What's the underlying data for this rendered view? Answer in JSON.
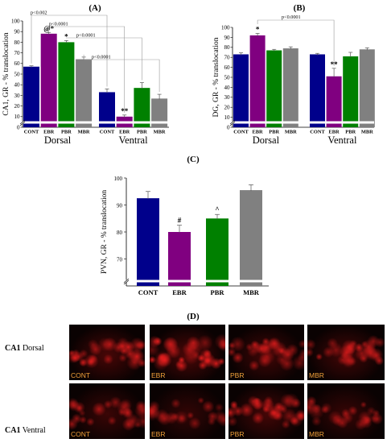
{
  "panels": {
    "A": "(A)",
    "B": "(B)",
    "C": "(C)",
    "D": "(D)"
  },
  "colors": {
    "CONT": "#00008b",
    "EBR": "#800080",
    "PBR": "#008000",
    "MBR": "#808080"
  },
  "chart_data": [
    {
      "id": "A",
      "type": "bar",
      "ylabel": "CA1, GR - % translocation",
      "ylim": [
        0,
        100
      ],
      "yticks": [
        0,
        10,
        20,
        30,
        40,
        50,
        60,
        70,
        80,
        90,
        100
      ],
      "categories": [
        "CONT",
        "EBR",
        "PBR",
        "MBR"
      ],
      "groups": [
        "Dorsal",
        "Ventral"
      ],
      "series": [
        {
          "group": "Dorsal",
          "values": [
            57,
            88,
            80,
            64
          ],
          "errors": [
            0.8,
            1.2,
            1.5,
            2.0
          ],
          "marks": [
            "",
            "@*",
            "*",
            ""
          ]
        },
        {
          "group": "Ventral",
          "values": [
            33,
            10,
            37,
            27
          ],
          "errors": [
            3.0,
            1.5,
            5.0,
            4.0
          ],
          "marks": [
            "",
            "**",
            "",
            ""
          ]
        }
      ],
      "comparisons": [
        "p<0.002",
        "p<0.0001",
        "p<0.0001",
        "p<0.0001"
      ],
      "grid": false
    },
    {
      "id": "B",
      "type": "bar",
      "ylabel": "DG, GR - % translocation",
      "ylim": [
        0,
        100
      ],
      "yticks": [
        0,
        10,
        20,
        30,
        40,
        50,
        60,
        70,
        80,
        90,
        100
      ],
      "categories": [
        "CONT",
        "EBR",
        "PBR",
        "MBR"
      ],
      "groups": [
        "Dorsal",
        "Ventral"
      ],
      "series": [
        {
          "group": "Dorsal",
          "values": [
            73,
            92,
            77,
            79
          ],
          "errors": [
            1.5,
            2.0,
            1.0,
            1.5
          ],
          "marks": [
            "",
            "*",
            "",
            ""
          ]
        },
        {
          "group": "Ventral",
          "values": [
            73,
            51,
            71,
            78
          ],
          "errors": [
            1.0,
            8.0,
            4.0,
            1.5
          ],
          "marks": [
            "",
            "**",
            "",
            ""
          ]
        }
      ],
      "comparisons": [
        "p<0.0001"
      ],
      "grid": false
    },
    {
      "id": "C",
      "type": "bar",
      "ylabel": "PVN, GR - % translocation",
      "ylim": [
        60,
        100
      ],
      "yticks": [
        70,
        80,
        90,
        100
      ],
      "categories": [
        "CONT",
        "EBR",
        "PBR",
        "MBR"
      ],
      "values": [
        92.5,
        80,
        85,
        95.5
      ],
      "errors": [
        2.5,
        2.5,
        1.5,
        2.0
      ],
      "marks": [
        "",
        "#",
        "^",
        ""
      ],
      "grid": false
    }
  ],
  "micrographs": {
    "rows": [
      {
        "region": "CA1",
        "section": "Dorsal",
        "intensity": [
          0.9,
          1.0,
          0.75,
          0.8
        ]
      },
      {
        "region": "CA1",
        "section": "Ventral",
        "intensity": [
          0.55,
          0.35,
          0.8,
          0.45
        ]
      }
    ],
    "columns": [
      "CONT",
      "EBR",
      "PBR",
      "MBR"
    ]
  }
}
